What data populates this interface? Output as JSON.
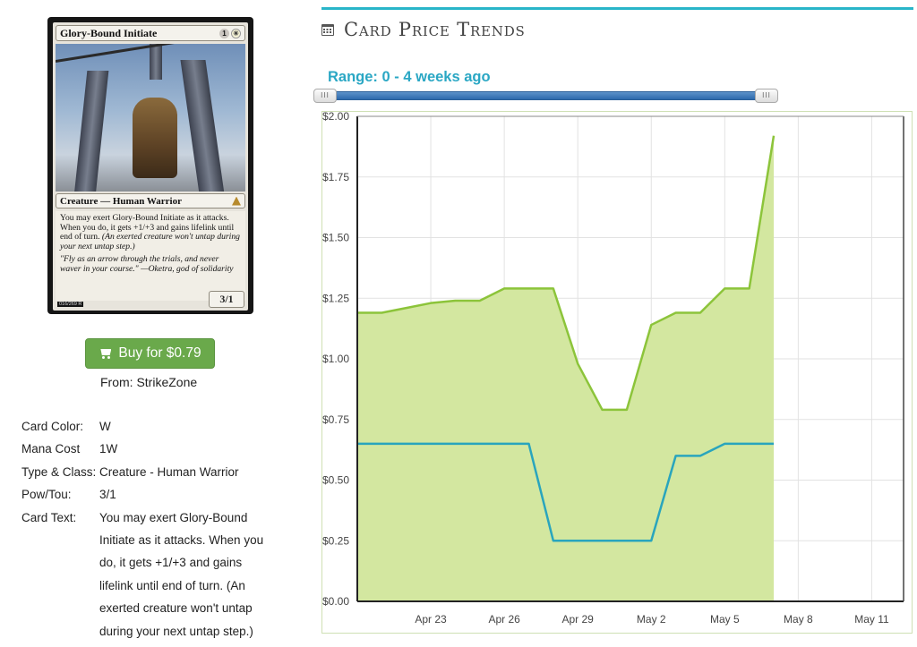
{
  "card": {
    "name": "Glory-Bound Initiate",
    "mana_symbols": [
      "1",
      "W"
    ],
    "type_line": "Creature — Human Warrior",
    "rules_text": "You may exert Glory-Bound Initiate as it attacks. When you do, it gets +1/+3 and gains lifelink until end of turn.",
    "reminder_text": "(An exerted creature won't untap during your next untap step.)",
    "flavor_text": "\"Fly as an arrow through the trials, and never waver in your course.\" —Oketra, god of solidarity",
    "pt": "3/1",
    "collector_number": "016/269 R"
  },
  "buy": {
    "label": "Buy for $0.79",
    "from": "From: StrikeZone"
  },
  "details": [
    {
      "label": "Card Color:",
      "value": "W"
    },
    {
      "label": "Mana Cost",
      "value": "1W"
    },
    {
      "label": "Type & Class:",
      "value": "Creature - Human Warrior"
    },
    {
      "label": "Pow/Tou:",
      "value": "3/1"
    },
    {
      "label": "Card Text:",
      "value": "You may exert Glory-Bound Initiate as it attacks. When you do, it gets +1/+3 and gains lifelink until end of turn. (An exerted creature won't untap during your next untap step.)"
    }
  ],
  "panel": {
    "title": "Card Price Trends",
    "range_label": "Range: 0 - 4 weeks ago",
    "handle_glyph": "III"
  },
  "colors": {
    "accent": "#29b5c9",
    "buy_green": "#6aa94b",
    "high_line": "#8cc43a",
    "high_fill": "#d3e7a0",
    "low_line": "#29a5bd",
    "range_blue": "#2aa7c4"
  },
  "chart_data": {
    "type": "area",
    "y_ticks": [
      "$0.00",
      "$0.25",
      "$0.50",
      "$0.75",
      "$1.00",
      "$1.25",
      "$1.50",
      "$1.75",
      "$2.00"
    ],
    "x_ticks": [
      {
        "label": "Apr 23",
        "day": 3
      },
      {
        "label": "Apr 26",
        "day": 6
      },
      {
        "label": "Apr 29",
        "day": 9
      },
      {
        "label": "May 2",
        "day": 12
      },
      {
        "label": "May 5",
        "day": 15
      },
      {
        "label": "May 8",
        "day": 18
      },
      {
        "label": "May 11",
        "day": 21
      }
    ],
    "ylim": [
      0,
      2
    ],
    "xlim": [
      0,
      22.3
    ],
    "grid": true,
    "series": [
      {
        "name": "",
        "color": "#8cc43a",
        "filled": true,
        "points": [
          [
            0,
            1.19
          ],
          [
            1,
            1.19
          ],
          [
            2,
            1.21
          ],
          [
            3,
            1.23
          ],
          [
            4,
            1.24
          ],
          [
            5,
            1.24
          ],
          [
            6,
            1.29
          ],
          [
            7,
            1.29
          ],
          [
            8,
            1.29
          ],
          [
            9,
            0.98
          ],
          [
            10,
            0.79
          ],
          [
            11,
            0.79
          ],
          [
            12,
            1.14
          ],
          [
            13,
            1.19
          ],
          [
            14,
            1.19
          ],
          [
            15,
            1.29
          ],
          [
            16,
            1.29
          ],
          [
            17,
            1.92
          ]
        ]
      },
      {
        "name": "",
        "color": "#29a5bd",
        "filled": false,
        "points": [
          [
            0,
            0.65
          ],
          [
            7,
            0.65
          ],
          [
            8,
            0.25
          ],
          [
            12,
            0.25
          ],
          [
            13,
            0.6
          ],
          [
            14,
            0.6
          ],
          [
            15,
            0.65
          ],
          [
            17,
            0.65
          ]
        ]
      }
    ]
  }
}
